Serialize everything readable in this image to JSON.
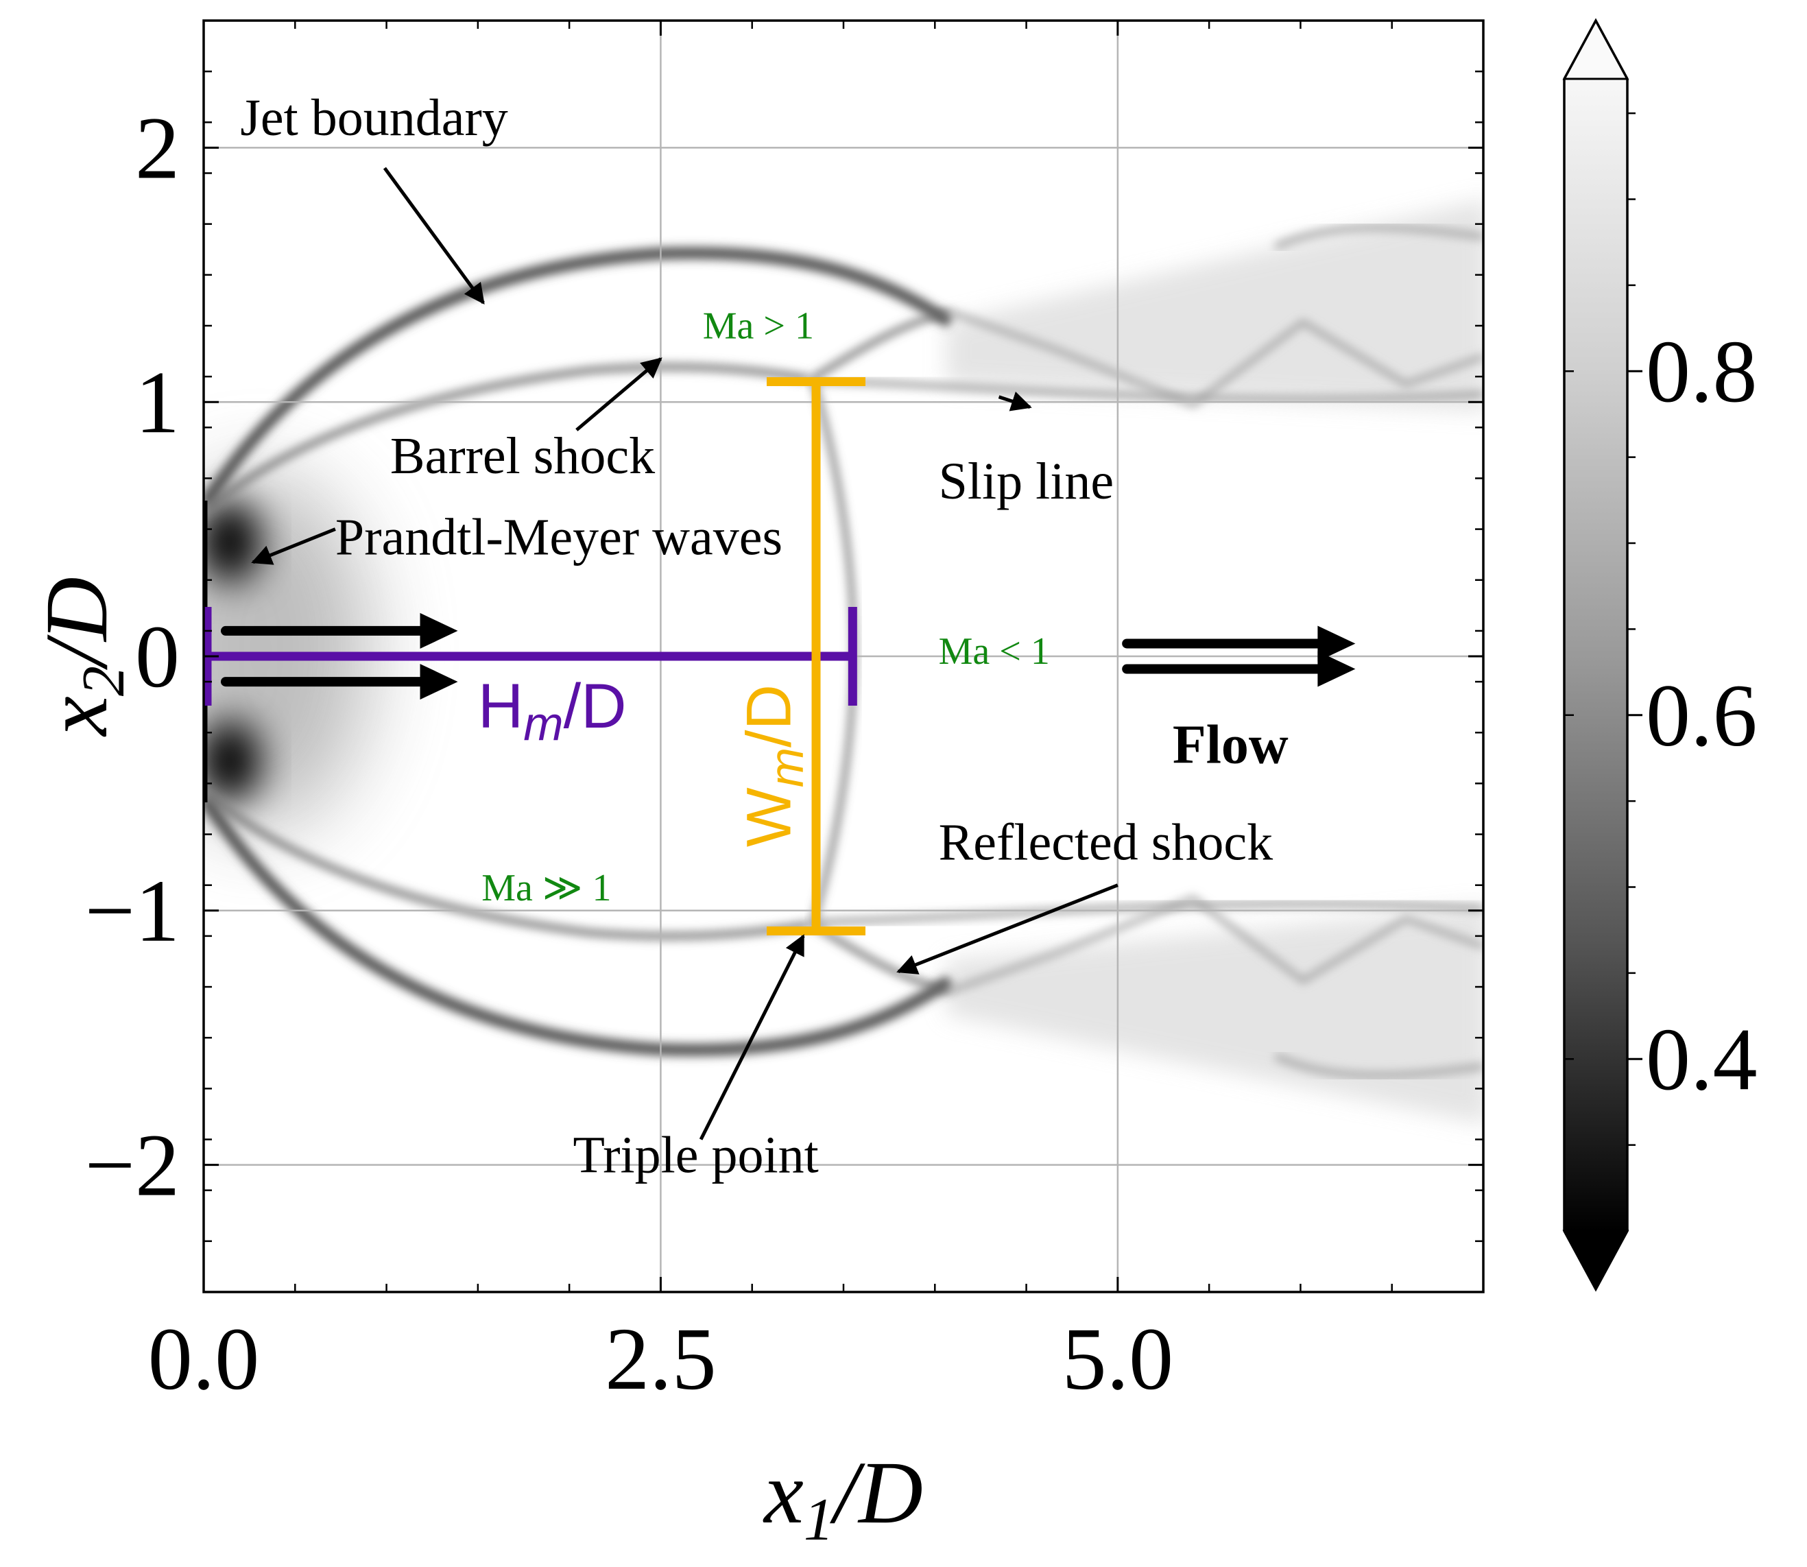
{
  "chart_data": {
    "type": "heatmap",
    "xlabel_var": "x",
    "xlabel_sub": "1",
    "xlabel_rest": "/D",
    "ylabel_var": "x",
    "ylabel_sub": "2",
    "ylabel_rest": "/D",
    "xlim": [
      0,
      7
    ],
    "ylim": [
      -2.5,
      2.5
    ],
    "x_ticks": [
      0.0,
      2.5,
      5.0
    ],
    "x_tick_labels": [
      "0.0",
      "2.5",
      "5.0"
    ],
    "y_ticks": [
      2,
      1,
      0,
      -1,
      -2
    ],
    "y_tick_labels": [
      "2",
      "1",
      "0",
      "−1",
      "−2"
    ],
    "grid": true,
    "colorbar": {
      "colormap": "gray",
      "range": [
        0.3,
        0.97
      ],
      "ticks": [
        0.8,
        0.6,
        0.4
      ],
      "tick_labels": [
        "0.8",
        "0.6",
        "0.4"
      ],
      "extend": "both"
    },
    "features": {
      "barrel_shock_outer": [
        [
          0.05,
          0.62
        ],
        [
          0.6,
          1.12
        ],
        [
          1.5,
          1.46
        ],
        [
          2.5,
          1.6
        ],
        [
          3.2,
          1.58
        ],
        [
          3.7,
          1.5
        ],
        [
          4.05,
          1.38
        ]
      ],
      "barrel_shock_inner": [
        [
          0.05,
          0.58
        ],
        [
          0.6,
          0.9
        ],
        [
          1.5,
          1.06
        ],
        [
          2.4,
          1.14
        ],
        [
          3.0,
          1.12
        ],
        [
          3.4,
          1.08
        ]
      ],
      "mach_disk": [
        [
          3.4,
          1.08
        ],
        [
          3.5,
          0.6
        ],
        [
          3.55,
          0.0
        ],
        [
          3.5,
          -0.6
        ],
        [
          3.4,
          -1.08
        ]
      ],
      "reflected_shock": [
        [
          3.4,
          1.08
        ],
        [
          3.7,
          1.2
        ],
        [
          4.05,
          1.38
        ]
      ],
      "slip_line": [
        [
          3.4,
          1.08
        ],
        [
          4.0,
          1.05
        ],
        [
          5.0,
          1.0
        ],
        [
          6.9,
          0.95
        ]
      ],
      "expansion_regions": [
        [
          0.12,
          0.45
        ],
        [
          0.12,
          -0.45
        ]
      ]
    },
    "measurements": {
      "H_m": {
        "label_main": "H",
        "label_sub": "m",
        "label_rest": "/D",
        "value": 3.55,
        "color": "#5a10a6"
      },
      "W_m": {
        "label_main": "W",
        "label_sub": "m",
        "label_rest": "/D",
        "value": 2.16,
        "x": 3.35,
        "color": "#f6b400"
      }
    },
    "annotations": [
      {
        "text": "Jet boundary",
        "x": 0.2,
        "y": 2.05,
        "arrow_to": [
          1.53,
          1.39
        ]
      },
      {
        "text": "Barrel shock",
        "x": 1.02,
        "y": 0.72,
        "arrow_to": [
          2.5,
          1.17
        ]
      },
      {
        "text": "Prandtl-Meyer waves",
        "x": 0.72,
        "y": 0.4,
        "arrow_to": [
          0.27,
          0.37
        ]
      },
      {
        "text": "Slip line",
        "x": 4.02,
        "y": 0.62,
        "arrow_to": [
          4.52,
          0.98
        ]
      },
      {
        "text": "Reflected shock",
        "x": 4.02,
        "y": -0.8,
        "arrow_to": [
          3.8,
          -1.24
        ]
      },
      {
        "text": "Triple point",
        "x": 2.02,
        "y": -2.03,
        "arrow_to": [
          3.28,
          -1.1
        ]
      },
      {
        "text": "Flow",
        "x": 5.3,
        "y": -0.42,
        "bold": true
      }
    ],
    "mach_labels": [
      {
        "text": "Ma > 1",
        "x": 2.73,
        "y": 1.25
      },
      {
        "text": "Ma < 1",
        "x": 4.02,
        "y": -0.03
      },
      {
        "text": "Ma ≫ 1",
        "x": 1.52,
        "y": -0.96
      }
    ],
    "mach_label_color": "#118811"
  }
}
